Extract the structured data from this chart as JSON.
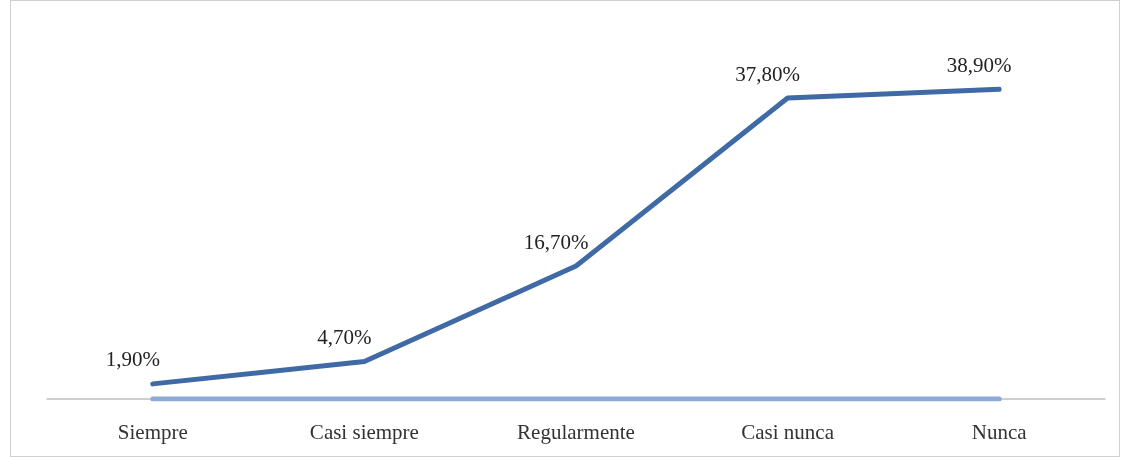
{
  "chart_data": {
    "type": "line",
    "categories": [
      "Siempre",
      "Casi siempre",
      "Regularmente",
      "Casi nunca",
      "Nunca"
    ],
    "series": [
      {
        "color": "#3f6aa6",
        "values": [
          1.9,
          4.7,
          16.7,
          37.8,
          38.9
        ],
        "value_labels": [
          "1,90%",
          "4,70%",
          "16,70%",
          "37,80%",
          "38,90%"
        ]
      },
      {
        "color": "#8eaad8",
        "values": [
          0,
          0,
          0,
          0,
          0
        ]
      }
    ],
    "marker": "none",
    "line_style": "solid",
    "grid": false
  }
}
